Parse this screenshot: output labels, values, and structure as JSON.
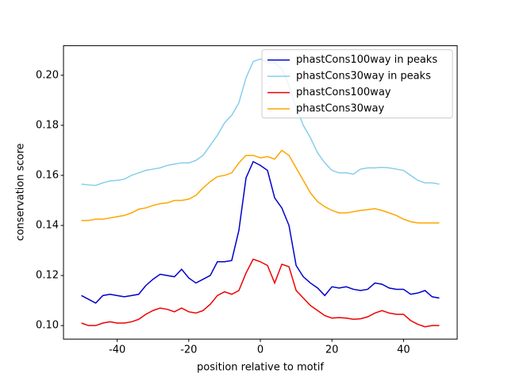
{
  "chart_data": {
    "type": "line",
    "xlabel": "position relative to motif",
    "ylabel": "conservation score",
    "x": [
      -50,
      -48,
      -46,
      -44,
      -42,
      -40,
      -38,
      -36,
      -34,
      -32,
      -30,
      -28,
      -26,
      -24,
      -22,
      -20,
      -18,
      -16,
      -14,
      -12,
      -10,
      -8,
      -6,
      -4,
      -2,
      0,
      2,
      4,
      6,
      8,
      10,
      12,
      14,
      16,
      18,
      20,
      22,
      24,
      26,
      28,
      30,
      32,
      34,
      36,
      38,
      40,
      42,
      44,
      46,
      48,
      50
    ],
    "series": [
      {
        "name": "phastCons100way in peaks",
        "color": "#0000cc",
        "values": [
          0.112,
          0.1105,
          0.109,
          0.112,
          0.1125,
          0.112,
          0.1115,
          0.112,
          0.1125,
          0.116,
          0.1185,
          0.1205,
          0.12,
          0.1195,
          0.1225,
          0.119,
          0.117,
          0.1185,
          0.12,
          0.1255,
          0.1255,
          0.126,
          0.138,
          0.159,
          0.1655,
          0.164,
          0.162,
          0.151,
          0.147,
          0.14,
          0.124,
          0.1195,
          0.117,
          0.115,
          0.112,
          0.1155,
          0.115,
          0.1155,
          0.1145,
          0.114,
          0.1145,
          0.117,
          0.1165,
          0.115,
          0.1145,
          0.1145,
          0.1125,
          0.113,
          0.114,
          0.1115,
          0.111
        ]
      },
      {
        "name": "phastCons30way in peaks",
        "color": "#87ceeb",
        "values": [
          0.1565,
          0.1562,
          0.156,
          0.157,
          0.1578,
          0.158,
          0.1585,
          0.16,
          0.161,
          0.162,
          0.1625,
          0.163,
          0.164,
          0.1645,
          0.165,
          0.165,
          0.166,
          0.168,
          0.172,
          0.176,
          0.181,
          0.184,
          0.189,
          0.199,
          0.2055,
          0.2065,
          0.205,
          0.205,
          0.2025,
          0.196,
          0.187,
          0.18,
          0.175,
          0.169,
          0.165,
          0.162,
          0.161,
          0.161,
          0.1605,
          0.1625,
          0.163,
          0.163,
          0.1632,
          0.163,
          0.1625,
          0.162,
          0.16,
          0.158,
          0.157,
          0.157,
          0.1565
        ]
      },
      {
        "name": "phastCons100way",
        "color": "#ee0000",
        "values": [
          0.101,
          0.1,
          0.1,
          0.101,
          0.1015,
          0.101,
          0.101,
          0.1015,
          0.1025,
          0.1045,
          0.106,
          0.107,
          0.1065,
          0.1055,
          0.107,
          0.1055,
          0.105,
          0.106,
          0.1085,
          0.112,
          0.1135,
          0.1125,
          0.114,
          0.121,
          0.1265,
          0.1255,
          0.124,
          0.117,
          0.1245,
          0.1235,
          0.114,
          0.111,
          0.108,
          0.106,
          0.104,
          0.103,
          0.1032,
          0.103,
          0.1025,
          0.1027,
          0.1035,
          0.105,
          0.106,
          0.105,
          0.1045,
          0.1045,
          0.102,
          0.1005,
          0.0995,
          0.1,
          0.1
        ]
      },
      {
        "name": "phastCons30way",
        "color": "#ffa500",
        "values": [
          0.142,
          0.142,
          0.1425,
          0.1425,
          0.143,
          0.1435,
          0.144,
          0.145,
          0.1465,
          0.147,
          0.148,
          0.1487,
          0.149,
          0.15,
          0.15,
          0.1505,
          0.152,
          0.155,
          0.1575,
          0.1595,
          0.16,
          0.161,
          0.165,
          0.168,
          0.168,
          0.167,
          0.1675,
          0.1665,
          0.17,
          0.168,
          0.163,
          0.158,
          0.153,
          0.1495,
          0.1475,
          0.146,
          0.145,
          0.145,
          0.1455,
          0.146,
          0.1463,
          0.1467,
          0.146,
          0.145,
          0.144,
          0.1425,
          0.1415,
          0.141,
          0.141,
          0.141,
          0.141
        ]
      }
    ],
    "xlim": [
      -55,
      55
    ],
    "ylim": [
      0.0946,
      0.2118
    ],
    "xticks": [
      -40,
      -20,
      0,
      20,
      40
    ],
    "yticks": [
      {
        "value": 0.1,
        "label": "0.10"
      },
      0.12,
      0.14,
      0.16,
      0.18,
      {
        "value": 0.2,
        "label": "0.20"
      }
    ],
    "legend": "upper right",
    "grid": false
  }
}
